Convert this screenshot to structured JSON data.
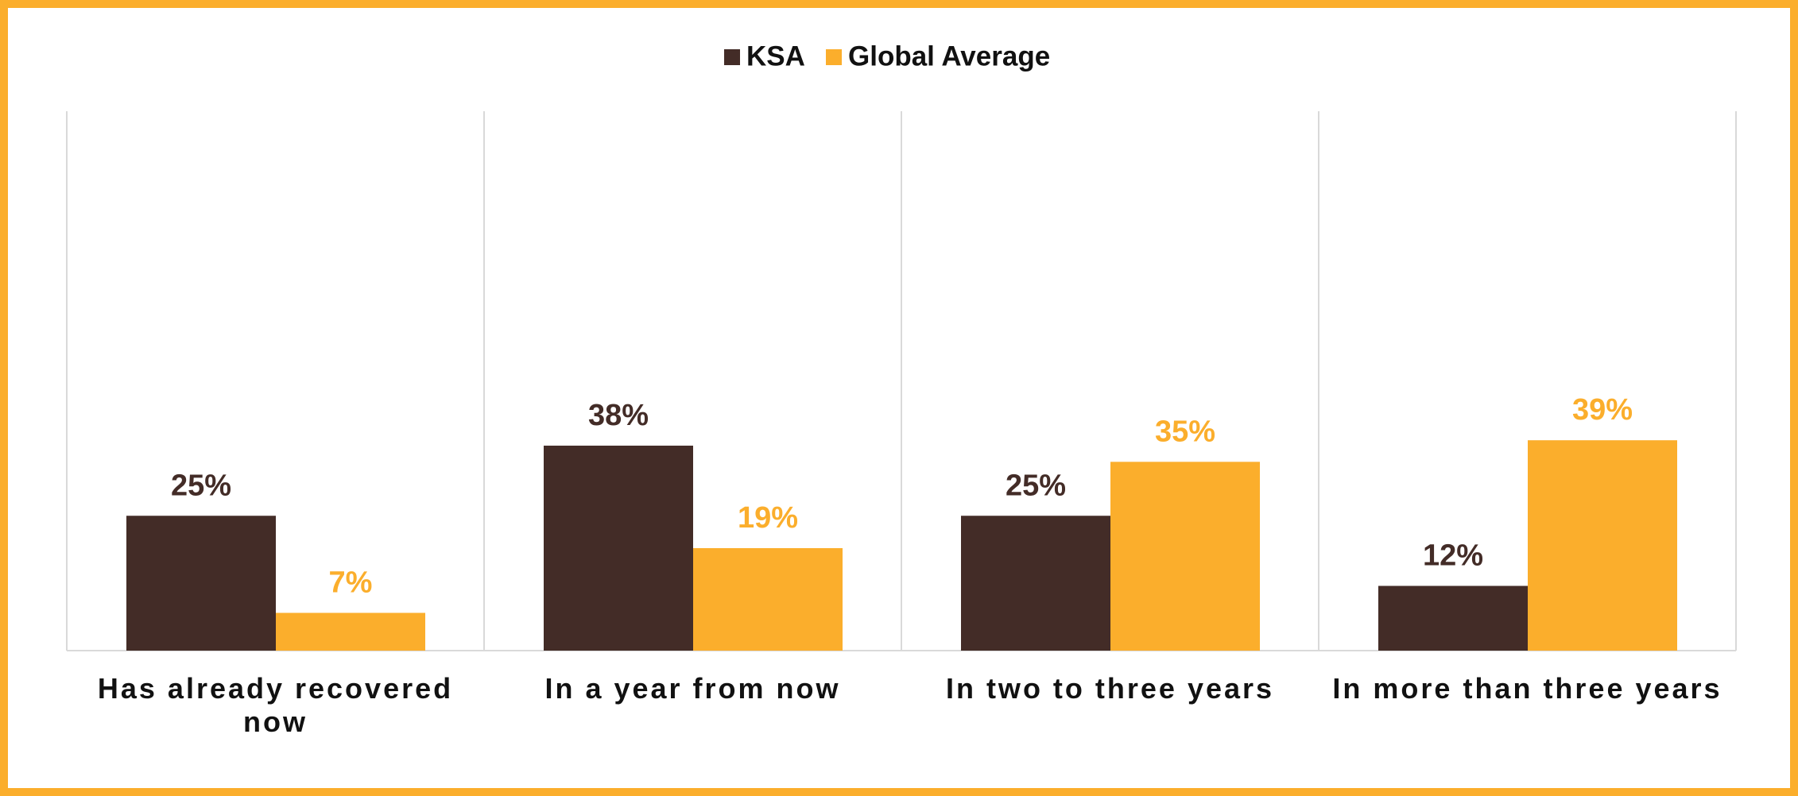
{
  "chart_data": {
    "type": "bar",
    "categories": [
      "Has already recovered now",
      "In a year from now",
      "In two to three years",
      "In more than three years"
    ],
    "series": [
      {
        "name": "KSA",
        "color": "#432c27",
        "values": [
          25,
          38,
          25,
          12
        ],
        "value_labels": [
          "25%",
          "38%",
          "25%",
          "12%"
        ]
      },
      {
        "name": "Global Average",
        "color": "#fbae2c",
        "values": [
          7,
          19,
          35,
          39
        ],
        "value_labels": [
          "7%",
          "19%",
          "35%",
          "39%"
        ]
      }
    ],
    "ylim": [
      0,
      100
    ]
  }
}
